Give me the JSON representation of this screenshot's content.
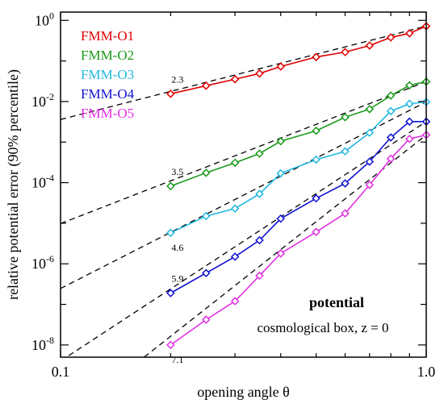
{
  "chart_data": {
    "type": "line",
    "xlabel": "opening angle  θ",
    "ylabel": "relative potential error (90% percentile)",
    "xscale": "log",
    "yscale": "log",
    "xlim": [
      0.1,
      1.0
    ],
    "ylim": [
      5e-09,
      1.6
    ],
    "x_ticks": [
      {
        "value": 0.1,
        "label": "0.1"
      },
      {
        "value": 1.0,
        "label": "1.0"
      }
    ],
    "y_ticks": [
      {
        "value": 1,
        "mantissa": "10",
        "exponent": "0"
      },
      {
        "value": 0.01,
        "mantissa": "10",
        "exponent": "-2"
      },
      {
        "value": 0.0001,
        "mantissa": "10",
        "exponent": "-4"
      },
      {
        "value": 1e-06,
        "mantissa": "10",
        "exponent": "-6"
      },
      {
        "value": 1e-08,
        "mantissa": "10",
        "exponent": "-8"
      }
    ],
    "grid": false,
    "legend_position": "top-left",
    "x": [
      0.2,
      0.25,
      0.3,
      0.35,
      0.4,
      0.5,
      0.6,
      0.7,
      0.8,
      0.9,
      1.0
    ],
    "series": [
      {
        "name": "FMM-O1",
        "color": "#e00000",
        "values": [
          0.0155,
          0.0245,
          0.0355,
          0.049,
          0.073,
          0.125,
          0.165,
          0.24,
          0.38,
          0.48,
          0.72
        ]
      },
      {
        "name": "FMM-O2",
        "color": "#1a9a1a",
        "values": [
          8.2e-05,
          0.000175,
          0.00031,
          0.00052,
          0.00105,
          0.0019,
          0.0041,
          0.0065,
          0.014,
          0.025,
          0.031
        ]
      },
      {
        "name": "FMM-O3",
        "color": "#22b8e0",
        "values": [
          5.8e-06,
          1.5e-05,
          2.3e-05,
          5.3e-05,
          0.00017,
          0.00037,
          0.00059,
          0.0017,
          0.0058,
          0.0088,
          0.0098
        ]
      },
      {
        "name": "FMM-O4",
        "color": "#1010d0",
        "values": [
          1.9e-07,
          5.9e-07,
          1.5e-06,
          3.8e-06,
          1.3e-05,
          4.1e-05,
          9.6e-05,
          0.00033,
          0.0013,
          0.0032,
          0.0032
        ]
      },
      {
        "name": "FMM-O5",
        "color": "#e030e0",
        "values": [
          1e-08,
          4.2e-08,
          1.2e-07,
          5.1e-07,
          1.8e-06,
          6.1e-06,
          1.75e-05,
          8.8e-05,
          0.00039,
          0.0012,
          0.0015
        ]
      }
    ],
    "fits": [
      {
        "slope": 2.3,
        "label": "2.3",
        "anchor_value": 0.72
      },
      {
        "slope": 3.5,
        "label": "3.5",
        "anchor_value": 0.031
      },
      {
        "slope": 4.6,
        "label": "4.6",
        "anchor_value": 0.0098
      },
      {
        "slope": 5.9,
        "label": "5.9",
        "anchor_value": 0.0032
      },
      {
        "slope": 7.1,
        "label": "7.1",
        "anchor_value": 0.0015
      }
    ],
    "annotations": {
      "title_bold": "potential",
      "subtitle": "cosmological box, z = 0"
    }
  }
}
